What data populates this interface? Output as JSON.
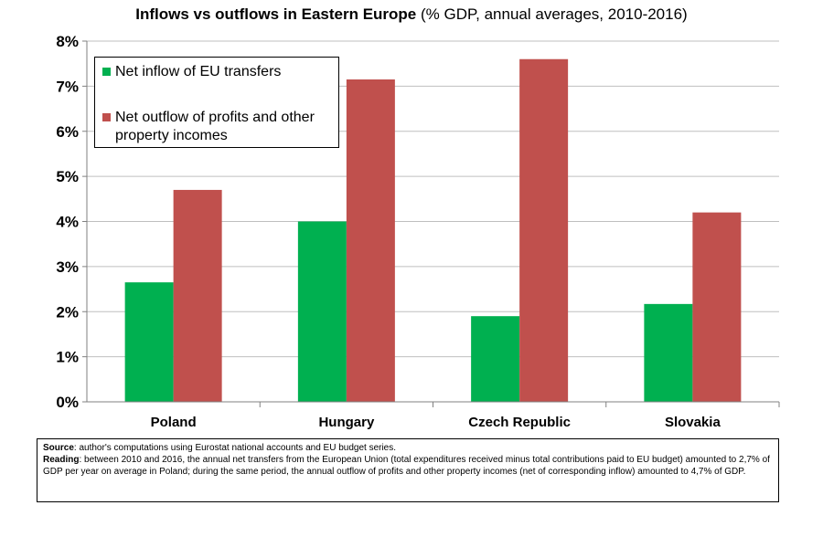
{
  "chart_data": {
    "type": "bar",
    "title": "Inflows vs outflows in Eastern Europe",
    "subtitle": "(% GDP, annual averages, 2010-2016)",
    "categories": [
      "Poland",
      "Hungary",
      "Czech Republic",
      "Slovakia"
    ],
    "series": [
      {
        "name": "Net inflow of EU transfers",
        "color": "#00b050",
        "values": [
          2.65,
          4.0,
          1.9,
          2.17
        ]
      },
      {
        "name": "Net outflow of profits and other property incomes",
        "color": "#c0504d",
        "values": [
          4.7,
          7.15,
          7.6,
          4.2
        ]
      }
    ],
    "ylim": [
      0,
      8
    ],
    "yticks": [
      "0%",
      "1%",
      "2%",
      "3%",
      "4%",
      "5%",
      "6%",
      "7%",
      "8%"
    ],
    "grid": true,
    "legend_position": "top-left"
  },
  "notes": {
    "source_label": "Source",
    "source_text": ": author's computations using Eurostat national accounts and EU budget series.",
    "reading_label": "Reading",
    "reading_text": ": between 2010 and 2016, the annual net transfers from the European Union (total expenditures received minus total contributions paid to EU budget) amounted to 2,7% of GDP per year on average in Poland; during the same period, the annual outflow of profits and other property incomes (net of corresponding inflow) amounted to 4,7% of GDP."
  }
}
